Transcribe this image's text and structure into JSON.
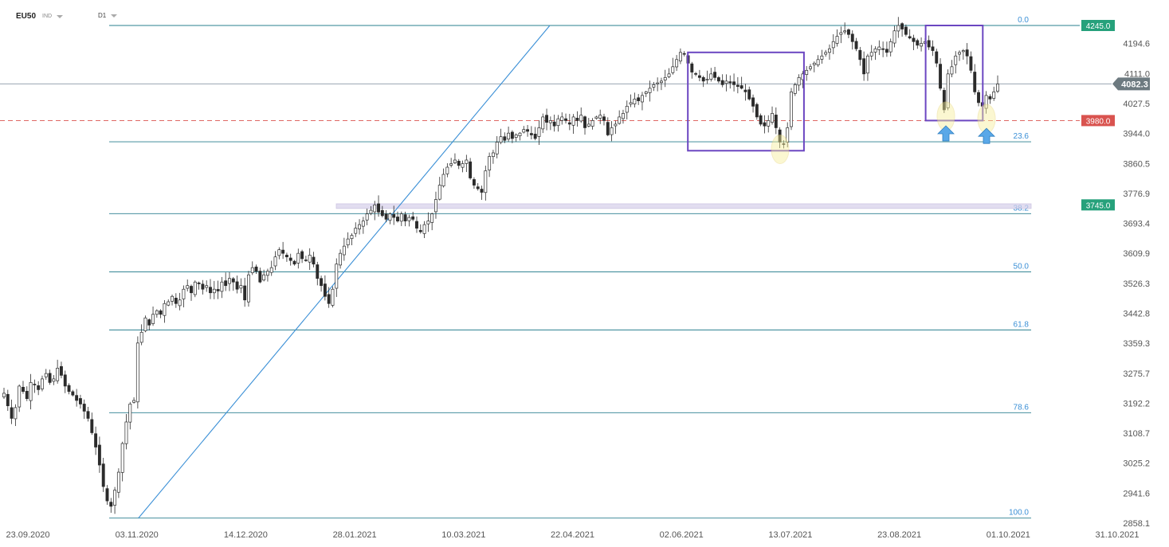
{
  "header": {
    "symbol": "EU50",
    "market": "IND",
    "timeframe": "D1"
  },
  "colors": {
    "fib_line": "#2a7f8f",
    "fib_label": "#3a8fd6",
    "trend_line": "#3a8fd6",
    "box": "#6b46c1",
    "support": "#d9534f",
    "green_tag": "#26a17b",
    "price_tag": "#6d7a80",
    "candle": "#2b2b2b",
    "zone": "#d6d0ea",
    "arrow": "#5aa8e8"
  },
  "chart_data": {
    "type": "candlestick",
    "x_ticks": [
      "23.09.2020",
      "03.11.2020",
      "14.12.2020",
      "28.01.2021",
      "10.03.2021",
      "22.04.2021",
      "02.06.2021",
      "13.07.2021",
      "23.08.2021",
      "01.10.2021",
      "31.10.2021"
    ],
    "y_ticks": [
      "4194.6",
      "4111.0",
      "4027.5",
      "3944.0",
      "3860.5",
      "3776.9",
      "3693.4",
      "3609.9",
      "3526.3",
      "3442.8",
      "3359.3",
      "3275.7",
      "3192.2",
      "3108.7",
      "3025.2",
      "2941.6",
      "2858.1"
    ],
    "y_range": [
      2858.1,
      4245.0
    ],
    "current_price": "4082.3",
    "fibonacci": {
      "high": 4245.0,
      "low": 2872.0,
      "levels": [
        {
          "label": "0.0",
          "ratio": 0.0
        },
        {
          "label": "23.6",
          "ratio": 0.236
        },
        {
          "label": "38.2",
          "ratio": 0.382
        },
        {
          "label": "50.0",
          "ratio": 0.5
        },
        {
          "label": "61.8",
          "ratio": 0.618
        },
        {
          "label": "78.6",
          "ratio": 0.786
        },
        {
          "label": "100.0",
          "ratio": 1.0
        }
      ]
    },
    "price_tags": [
      {
        "value": 4245.0,
        "label": "4245.0",
        "kind": "green"
      },
      {
        "value": 4082.3,
        "label": "4082.3",
        "kind": "current"
      },
      {
        "value": 3980.0,
        "label": "3980.0",
        "kind": "red"
      },
      {
        "value": 3745.0,
        "label": "3745.0",
        "kind": "green"
      }
    ],
    "support_level": 3980.0,
    "resistance_zone": [
      3735.0,
      3748.0
    ],
    "trend_line": {
      "from": {
        "date": "03.11.2020",
        "value": 2872.0
      },
      "to": {
        "date": "28.01.2021",
        "value": 4245.0
      }
    },
    "rectangles": [
      {
        "from": "02.06.2021",
        "to": "13.07.2021",
        "high": 4170.0,
        "low": 3896.0
      },
      {
        "from": "23.08.2021",
        "to": "01.10.2021",
        "high": 4245.0,
        "low": 3980.0
      }
    ],
    "closes": [
      3220,
      3185,
      3150,
      3180,
      3240,
      3225,
      3205,
      3250,
      3245,
      3230,
      3260,
      3275,
      3250,
      3260,
      3290,
      3270,
      3240,
      3225,
      3215,
      3200,
      3190,
      3170,
      3150,
      3110,
      3070,
      3020,
      2960,
      2920,
      2905,
      2950,
      3000,
      3080,
      3140,
      3190,
      3200,
      3360,
      3390,
      3430,
      3410,
      3440,
      3450,
      3440,
      3470,
      3475,
      3490,
      3470,
      3480,
      3510,
      3520,
      3500,
      3530,
      3525,
      3510,
      3520,
      3500,
      3510,
      3505,
      3530,
      3520,
      3540,
      3530,
      3510,
      3520,
      3480,
      3550,
      3570,
      3560,
      3530,
      3550,
      3560,
      3570,
      3600,
      3620,
      3610,
      3600,
      3590,
      3580,
      3610,
      3595,
      3590,
      3605,
      3580,
      3540,
      3520,
      3490,
      3470,
      3510,
      3580,
      3610,
      3630,
      3650,
      3660,
      3680,
      3690,
      3700,
      3720,
      3730,
      3745,
      3725,
      3715,
      3705,
      3720,
      3710,
      3700,
      3720,
      3700,
      3710,
      3705,
      3680,
      3670,
      3690,
      3700,
      3720,
      3760,
      3800,
      3830,
      3850,
      3860,
      3870,
      3855,
      3860,
      3870,
      3820,
      3800,
      3790,
      3780,
      3840,
      3880,
      3890,
      3920,
      3935,
      3925,
      3945,
      3930,
      3940,
      3945,
      3955,
      3950,
      3940,
      3930,
      3960,
      3990,
      3975,
      3980,
      3965,
      3985,
      3990,
      3980,
      3970,
      3990,
      3980,
      3995,
      3960,
      3970,
      3980,
      3990,
      3995,
      3980,
      3940,
      3960,
      3970,
      3990,
      4000,
      4020,
      4030,
      4040,
      4035,
      4050,
      4060,
      4070,
      4080,
      4085,
      4090,
      4100,
      4110,
      4130,
      4150,
      4170,
      4165,
      4140,
      4115,
      4110,
      4100,
      4090,
      4095,
      4110,
      4100,
      4090,
      4080,
      4090,
      4085,
      4080,
      4075,
      4070,
      4060,
      4040,
      4020,
      3990,
      3970,
      3965,
      3980,
      4000,
      3960,
      3920,
      3915,
      3960,
      4060,
      4080,
      4100,
      4110,
      4120,
      4130,
      4140,
      4150,
      4160,
      4170,
      4180,
      4200,
      4215,
      4225,
      4230,
      4220,
      4200,
      4180,
      4150,
      4110,
      4160,
      4170,
      4180,
      4185,
      4180,
      4170,
      4200,
      4230,
      4245,
      4235,
      4220,
      4210,
      4200,
      4190,
      4195,
      4200,
      4185,
      4175,
      4140,
      4070,
      4010,
      4110,
      4130,
      4160,
      4170,
      4175,
      4160,
      4120,
      4060,
      4030,
      4020,
      4050,
      4040,
      4060,
      4082
    ]
  }
}
